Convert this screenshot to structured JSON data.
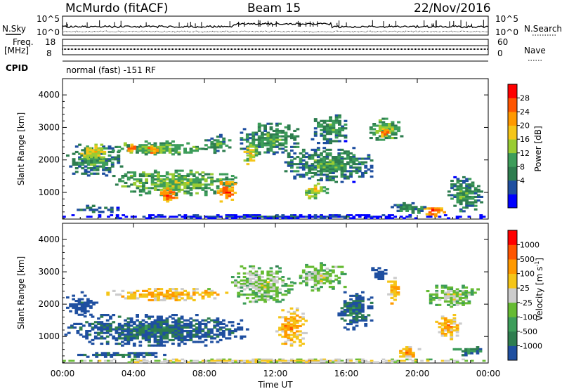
{
  "header": {
    "station": "McMurdo (fitACF)",
    "beam": "Beam 15",
    "date": "22/Nov/2016"
  },
  "top_panels": {
    "nsky_label": "N.Sky",
    "nsearch_label": "N.Search",
    "nsky_ticks": [
      "10^5",
      "10^0"
    ],
    "nsearch_ticks": [
      "10^5",
      "10^0"
    ],
    "freq_label_1": "Freq.",
    "freq_label_2": "[MHz]",
    "freq_ticks": [
      "18",
      "8"
    ],
    "nave_label": "Nave",
    "nave_ticks": [
      "60",
      "0"
    ],
    "cpid_label": "CPID",
    "cpid_text": "normal (fast) -151 RF"
  },
  "chart_data": [
    {
      "type": "heatmap",
      "quantity": "Power",
      "ylabel": "Slant Range [km]",
      "colorbar_label": "Power [dB]",
      "colorbar_ticks": [
        "28",
        "24",
        "20",
        "16",
        "12",
        "8",
        "4"
      ],
      "colorbar_colors": [
        "#0000ff",
        "#1f4fa0",
        "#2e7d4f",
        "#3d9d5a",
        "#99cc33",
        "#f5c518",
        "#ff9900",
        "#ff5500",
        "#ff0000"
      ],
      "yticks": [
        "4000",
        "3000",
        "2000",
        "1000"
      ],
      "ylim": [
        180,
        4500
      ],
      "xlim": [
        0,
        24
      ],
      "xticks": [
        "00:00",
        "04:00",
        "08:00",
        "12:00",
        "16:00",
        "20:00",
        "00:00"
      ],
      "xlabel": "",
      "regions": [
        {
          "t0": 0.2,
          "t1": 3.4,
          "r0": 1500,
          "r1": 2500,
          "level": 3
        },
        {
          "t0": 1.0,
          "t1": 2.6,
          "r0": 2000,
          "r1": 2500,
          "level": 5
        },
        {
          "t0": 2.6,
          "t1": 8.5,
          "r0": 2150,
          "r1": 2600,
          "level": 4
        },
        {
          "t0": 3.5,
          "t1": 4.3,
          "r0": 2200,
          "r1": 2500,
          "level": 7
        },
        {
          "t0": 4.8,
          "t1": 5.4,
          "r0": 2200,
          "r1": 2450,
          "level": 7
        },
        {
          "t0": 2.8,
          "t1": 10.0,
          "r0": 900,
          "r1": 1700,
          "level": 4
        },
        {
          "t0": 5.5,
          "t1": 6.5,
          "r0": 700,
          "r1": 1150,
          "level": 7
        },
        {
          "t0": 8.7,
          "t1": 9.8,
          "r0": 700,
          "r1": 1400,
          "level": 7
        },
        {
          "t0": 8.0,
          "t1": 9.5,
          "r0": 2200,
          "r1": 2800,
          "level": 3
        },
        {
          "t0": 10.0,
          "t1": 13.5,
          "r0": 2100,
          "r1": 3200,
          "level": 3
        },
        {
          "t0": 10.2,
          "t1": 11.0,
          "r0": 1800,
          "r1": 2600,
          "level": 5
        },
        {
          "t0": 12.5,
          "t1": 17.5,
          "r0": 1300,
          "r1": 2400,
          "level": 3
        },
        {
          "t0": 13.5,
          "t1": 15.0,
          "r0": 800,
          "r1": 1300,
          "level": 5
        },
        {
          "t0": 14.0,
          "t1": 16.2,
          "r0": 2500,
          "r1": 3400,
          "level": 3
        },
        {
          "t0": 17.3,
          "t1": 19.2,
          "r0": 2600,
          "r1": 3300,
          "level": 4
        },
        {
          "t0": 17.8,
          "t1": 18.4,
          "r0": 2700,
          "r1": 3000,
          "level": 7
        },
        {
          "t0": 20.3,
          "t1": 21.6,
          "r0": 250,
          "r1": 600,
          "level": 7
        },
        {
          "t0": 21.7,
          "t1": 23.7,
          "r0": 400,
          "r1": 1500,
          "level": 3
        },
        {
          "t0": 18.5,
          "t1": 20.5,
          "r0": 350,
          "r1": 700,
          "level": 3
        },
        {
          "t0": 0.0,
          "t1": 24.0,
          "r0": 190,
          "r1": 330,
          "level": 1
        },
        {
          "t0": 0.8,
          "t1": 3.2,
          "r0": 380,
          "r1": 620,
          "level": 2
        }
      ]
    },
    {
      "type": "heatmap",
      "quantity": "Velocity",
      "ylabel": "Slant Range [km]",
      "colorbar_label": "Velocity [m s",
      "colorbar_label_sup": "-1",
      "colorbar_label_end": "]",
      "colorbar_ticks": [
        "1000",
        "500",
        "100",
        "25",
        "-25",
        "-100",
        "-500",
        "-1000"
      ],
      "colorbar_colors": [
        "#1f4fa0",
        "#2e7d4f",
        "#3d9d5a",
        "#66bb33",
        "#cccccc",
        "#f5c518",
        "#ff9900",
        "#ff5500",
        "#ff0000"
      ],
      "yticks": [
        "4000",
        "3000",
        "2000",
        "1000"
      ],
      "ylim": [
        180,
        4500
      ],
      "xlim": [
        0,
        24
      ],
      "xticks": [
        "00:00",
        "04:00",
        "08:00",
        "12:00",
        "16:00",
        "20:00",
        "00:00"
      ],
      "xlabel": "Time UT",
      "regions": [
        {
          "t0": 0.1,
          "t1": 10.5,
          "r0": 700,
          "r1": 1700,
          "level": 1
        },
        {
          "t0": 0.2,
          "t1": 2.0,
          "r0": 1600,
          "r1": 2400,
          "level": 0
        },
        {
          "t0": 2.3,
          "t1": 9.5,
          "r0": 2100,
          "r1": 2500,
          "level": 6
        },
        {
          "t0": 9.5,
          "t1": 13.0,
          "r0": 2000,
          "r1": 3200,
          "level": 4
        },
        {
          "t0": 12.0,
          "t1": 13.8,
          "r0": 700,
          "r1": 1900,
          "level": 6
        },
        {
          "t0": 13.0,
          "t1": 16.0,
          "r0": 2400,
          "r1": 3300,
          "level": 4
        },
        {
          "t0": 15.5,
          "t1": 17.5,
          "r0": 1200,
          "r1": 2400,
          "level": 1
        },
        {
          "t0": 17.4,
          "t1": 18.3,
          "r0": 2700,
          "r1": 3200,
          "level": 0
        },
        {
          "t0": 18.3,
          "t1": 19.0,
          "r0": 2000,
          "r1": 2900,
          "level": 6
        },
        {
          "t0": 20.5,
          "t1": 23.5,
          "r0": 1900,
          "r1": 2600,
          "level": 4
        },
        {
          "t0": 21.0,
          "t1": 22.5,
          "r0": 900,
          "r1": 1700,
          "level": 6
        },
        {
          "t0": 18.8,
          "t1": 20.2,
          "r0": 300,
          "r1": 700,
          "level": 6
        },
        {
          "t0": 22.0,
          "t1": 23.8,
          "r0": 400,
          "r1": 700,
          "level": 2
        },
        {
          "t0": 0.5,
          "t1": 6.0,
          "r0": 350,
          "r1": 520,
          "level": 1
        },
        {
          "t0": 0.0,
          "t1": 24.0,
          "r0": 190,
          "r1": 320,
          "level": 5
        }
      ]
    }
  ]
}
